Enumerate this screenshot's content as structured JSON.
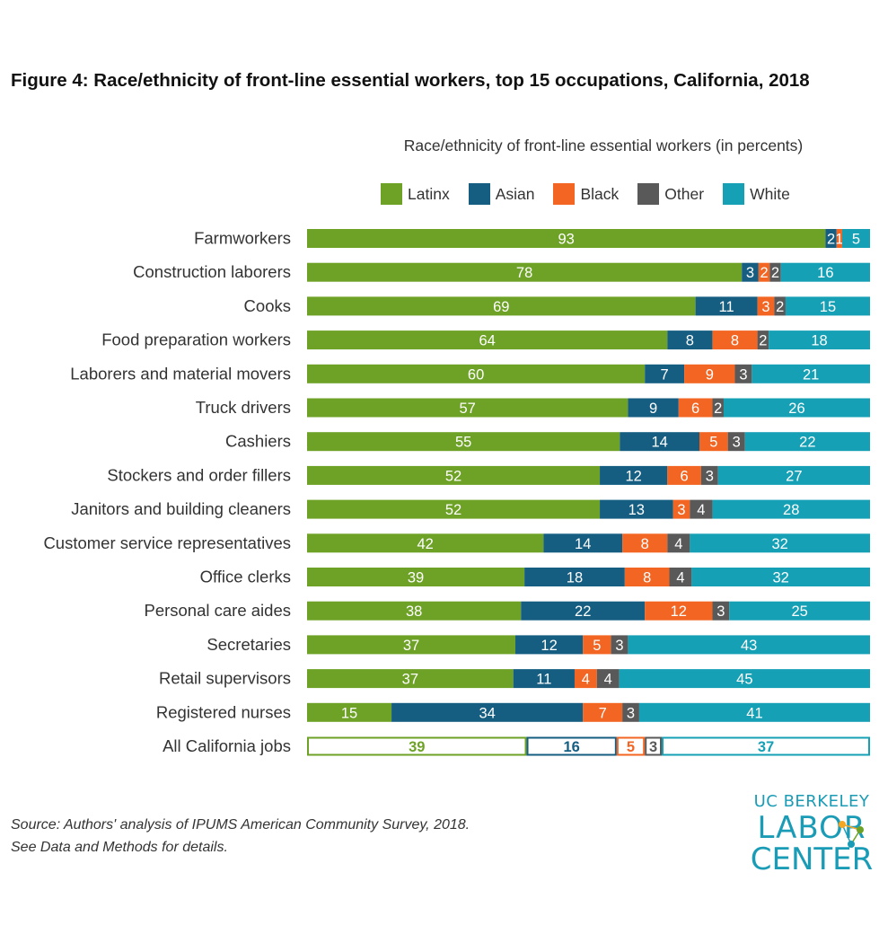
{
  "figure": {
    "title": "Figure 4:  Race/ethnicity of front-line essential workers, top 15 occupations, California, 2018"
  },
  "source_note": {
    "line1": "Source: Authors' analysis of IPUMS American Community Survey, 2018.",
    "line2": "See Data and Methods for details."
  },
  "logo": {
    "line1": "UC BERKELEY",
    "line2": "LABOR",
    "line3": "CENTER"
  },
  "colors": {
    "Latinx": "#6ea227",
    "Asian": "#155e82",
    "Black": "#f26522",
    "Other": "#595959",
    "White": "#16a0b5"
  },
  "chart_data": {
    "type": "bar",
    "orientation": "horizontal",
    "stacked": true,
    "title": "Race/ethnicity of front-line essential workers (in percents)",
    "legend_position": "top",
    "xlim": [
      0,
      100
    ],
    "grid": false,
    "categories": [
      "Farmworkers",
      "Construction laborers",
      "Cooks",
      "Food preparation workers",
      "Laborers and material movers",
      "Truck drivers",
      "Cashiers",
      "Stockers and order fillers",
      "Janitors and building cleaners",
      "Customer service representatives",
      "Office clerks",
      "Personal care aides",
      "Secretaries",
      "Retail supervisors",
      "Registered nurses",
      "All California jobs"
    ],
    "series": [
      {
        "name": "Latinx",
        "values": [
          93,
          78,
          69,
          64,
          60,
          57,
          55,
          52,
          52,
          42,
          39,
          38,
          37,
          37,
          15,
          39
        ]
      },
      {
        "name": "Asian",
        "values": [
          2,
          3,
          11,
          8,
          7,
          9,
          14,
          12,
          13,
          14,
          18,
          22,
          12,
          11,
          34,
          16
        ]
      },
      {
        "name": "Black",
        "values": [
          1,
          2,
          3,
          8,
          9,
          6,
          5,
          6,
          3,
          8,
          8,
          12,
          5,
          4,
          7,
          5
        ]
      },
      {
        "name": "Other",
        "values": [
          0,
          2,
          2,
          2,
          3,
          2,
          3,
          3,
          4,
          4,
          4,
          3,
          3,
          4,
          3,
          3
        ]
      },
      {
        "name": "White",
        "values": [
          5,
          16,
          15,
          18,
          21,
          26,
          22,
          27,
          28,
          32,
          32,
          25,
          43,
          45,
          41,
          37
        ]
      }
    ],
    "outlined_category": "All California jobs"
  }
}
